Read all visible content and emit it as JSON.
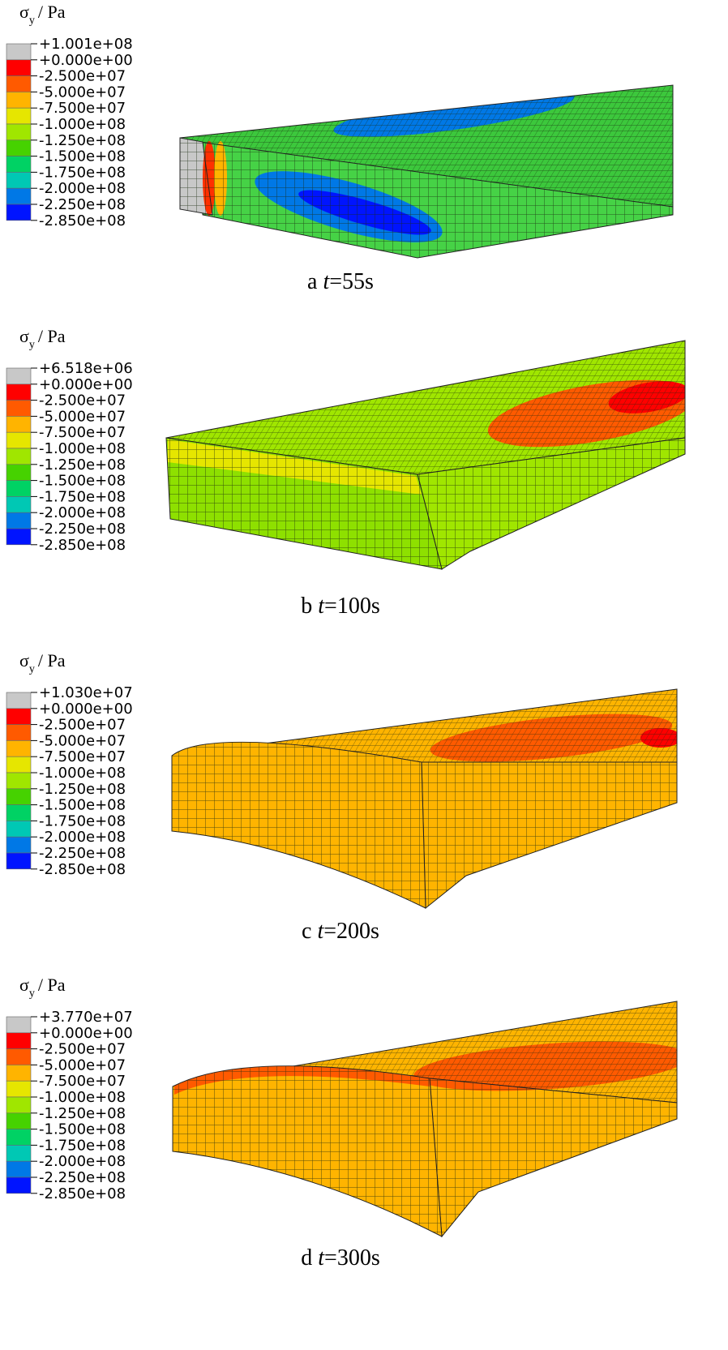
{
  "legend_title": {
    "symbol": "σ",
    "subscript": "y",
    "unit": "/ Pa"
  },
  "legend_colors": [
    "#c8c8c8",
    "#ff0000",
    "#ff5a00",
    "#ffb400",
    "#e6e600",
    "#a0e600",
    "#46d200",
    "#00d264",
    "#00c8b4",
    "#0078e6",
    "#0014ff"
  ],
  "panels": [
    {
      "legend_labels": [
        "+1.001e+08",
        "+0.000e+00",
        "-2.500e+07",
        "-5.000e+07",
        "-7.500e+07",
        "-1.000e+08",
        "-1.250e+08",
        "-1.500e+08",
        "-1.750e+08",
        "-2.000e+08",
        "-2.250e+08",
        "-2.850e+08"
      ],
      "caption": {
        "letter": "a",
        "variable": "t",
        "value": "=55s"
      }
    },
    {
      "legend_labels": [
        "+6.518e+06",
        "+0.000e+00",
        "-2.500e+07",
        "-5.000e+07",
        "-7.500e+07",
        "-1.000e+08",
        "-1.250e+08",
        "-1.500e+08",
        "-1.750e+08",
        "-2.000e+08",
        "-2.250e+08",
        "-2.850e+08"
      ],
      "caption": {
        "letter": "b",
        "variable": "t",
        "value": "=100s"
      }
    },
    {
      "legend_labels": [
        "+1.030e+07",
        "+0.000e+00",
        "-2.500e+07",
        "-5.000e+07",
        "-7.500e+07",
        "-1.000e+08",
        "-1.250e+08",
        "-1.500e+08",
        "-1.750e+08",
        "-2.000e+08",
        "-2.250e+08",
        "-2.850e+08"
      ],
      "caption": {
        "letter": "c",
        "variable": "t",
        "value": "=200s"
      }
    },
    {
      "legend_labels": [
        "+3.770e+07",
        "+0.000e+00",
        "-2.500e+07",
        "-5.000e+07",
        "-7.500e+07",
        "-1.000e+08",
        "-1.250e+08",
        "-1.500e+08",
        "-1.750e+08",
        "-2.000e+08",
        "-2.250e+08",
        "-2.850e+08"
      ],
      "caption": {
        "letter": "d",
        "variable": "t",
        "value": "=300s"
      }
    }
  ]
}
